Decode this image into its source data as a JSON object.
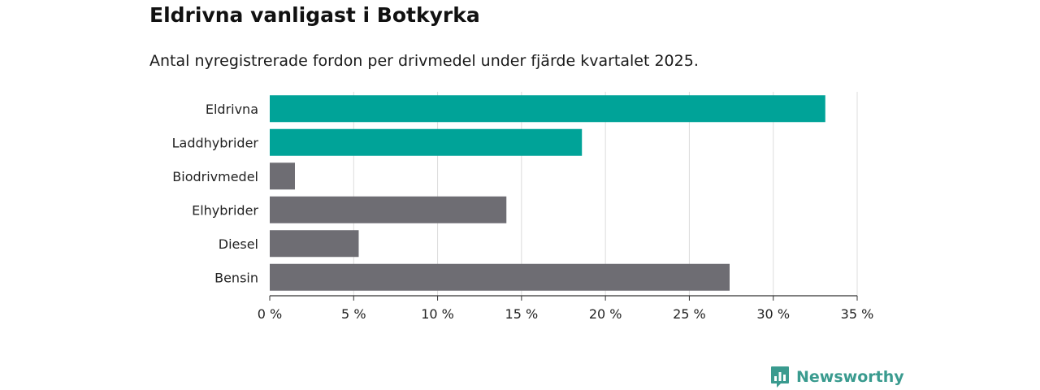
{
  "title": "Eldrivna vanligast i Botkyrka",
  "subtitle": "Antal nyregistrerade fordon per drivmedel under fjärde kvartalet 2025.",
  "chart_data": {
    "type": "bar",
    "orientation": "horizontal",
    "categories": [
      "Eldrivna",
      "Laddhybrider",
      "Biodrivmedel",
      "Elhybrider",
      "Diesel",
      "Bensin"
    ],
    "values": [
      33.1,
      18.6,
      1.5,
      14.1,
      5.3,
      27.4
    ],
    "bar_colors": [
      "#00a398",
      "#00a398",
      "#6e6d73",
      "#6e6d73",
      "#6e6d73",
      "#6e6d73"
    ],
    "xlim": [
      0,
      35
    ],
    "xticks": [
      0,
      5,
      10,
      15,
      20,
      25,
      30,
      35
    ],
    "tick_labels": [
      "0 %",
      "5 %",
      "10 %",
      "15 %",
      "20 %",
      "25 %",
      "30 %",
      "35 %"
    ],
    "grid": true,
    "unit": "%"
  },
  "brand": {
    "name": "Newsworthy",
    "color": "#3a9b8f",
    "icon": "chart-bars-icon"
  }
}
